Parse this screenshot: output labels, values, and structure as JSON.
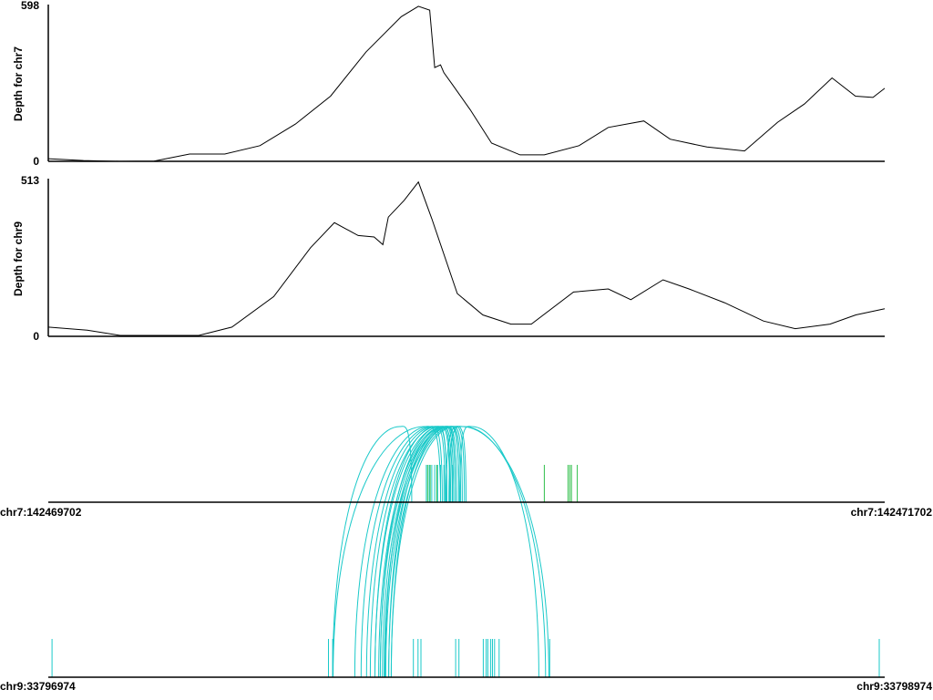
{
  "chart_data": [
    {
      "type": "line",
      "ylabel": "Depth for chr7",
      "ylim": [
        0,
        598
      ],
      "yticks": [
        "598",
        "0"
      ],
      "x": [
        142469702,
        142469786,
        142469871,
        142469955,
        142470040,
        142470124,
        142470208,
        142470293,
        142470377,
        142470462,
        142470546,
        142470587,
        142470614,
        142470626,
        142470640,
        142470648,
        142470668,
        142470711,
        142470762,
        142470830,
        142470888,
        142470971,
        142471041,
        142471126,
        142471189,
        142471277,
        142471367,
        142471446,
        142471510,
        142471576,
        142471632,
        142471674,
        142471702
      ],
      "values": [
        10,
        3,
        0,
        1,
        28,
        28,
        60,
        143,
        250,
        420,
        555,
        595,
        580,
        360,
        370,
        340,
        295,
        198,
        70,
        25,
        25,
        60,
        130,
        155,
        85,
        55,
        40,
        150,
        220,
        320,
        250,
        245,
        280
      ],
      "color": "#000000"
    },
    {
      "type": "line",
      "ylabel": "Depth for chr9",
      "ylim": [
        0,
        513
      ],
      "yticks": [
        "513",
        "0"
      ],
      "x": [
        142469702,
        142469795,
        142469874,
        142470062,
        142470141,
        142470241,
        142470329,
        142470386,
        142470443,
        142470481,
        142470502,
        142470515,
        142470553,
        142470587,
        142470619,
        142470680,
        142470741,
        142470808,
        142470857,
        142470958,
        142471041,
        142471095,
        142471172,
        142471234,
        142471319,
        142471412,
        142471488,
        142471571,
        142471633,
        142471702
      ],
      "values": [
        30,
        20,
        3,
        3,
        30,
        130,
        290,
        372,
        330,
        325,
        300,
        390,
        445,
        505,
        385,
        140,
        70,
        40,
        40,
        145,
        155,
        120,
        185,
        155,
        110,
        50,
        25,
        40,
        70,
        90
      ],
      "color": "#000000"
    },
    {
      "type": "arc",
      "top_label_left": "chr7:142469702",
      "top_label_right": "chr7:142471702",
      "bottom_label_left": "chr9:33796974",
      "bottom_label_right": "chr9:33798974",
      "top_range": [
        142469702,
        142471702
      ],
      "bottom_range": [
        33796974,
        33798974
      ],
      "arc_color": "#1ac9c9",
      "mark_color_green": "#2fbf4a",
      "arcs": [
        [
          142470644,
          33797707
        ],
        [
          142470651,
          33797722
        ],
        [
          142470655,
          33797735
        ],
        [
          142470662,
          33797744
        ],
        [
          142470668,
          33797755
        ],
        [
          142470675,
          33797764
        ],
        [
          142470679,
          33797768
        ],
        [
          142470684,
          33797773
        ],
        [
          142470688,
          33797777
        ],
        [
          142470692,
          33797781
        ],
        [
          142470697,
          33797788
        ],
        [
          142470701,
          33797794
        ],
        [
          142470655,
          33797755
        ],
        [
          142470664,
          33797768
        ],
        [
          142470671,
          33797779
        ],
        [
          142470675,
          33797788
        ],
        [
          142470684,
          33797794
        ],
        [
          142470640,
          33797655
        ],
        [
          142470653,
          33798171
        ],
        [
          142470660,
          33798163
        ],
        [
          142470686,
          33798147
        ],
        [
          142470571,
          33797654
        ]
      ],
      "top_marks_cyan": [
        142470606,
        142470613,
        142470619,
        142470626,
        142470633,
        142470640,
        142470648,
        142470655,
        142470662,
        142470668
      ],
      "top_marks_green": [
        142470609,
        142470615,
        142470631,
        142470888,
        142470945,
        142470949,
        142470953,
        142470967
      ],
      "bottom_marks": [
        33796983,
        33797644,
        33797654,
        33797847,
        33797858,
        33797865,
        33797948,
        33797956,
        33798014,
        33798021,
        33798025,
        33798032,
        33798036,
        33798041,
        33798052,
        33798173,
        33798961
      ]
    }
  ]
}
